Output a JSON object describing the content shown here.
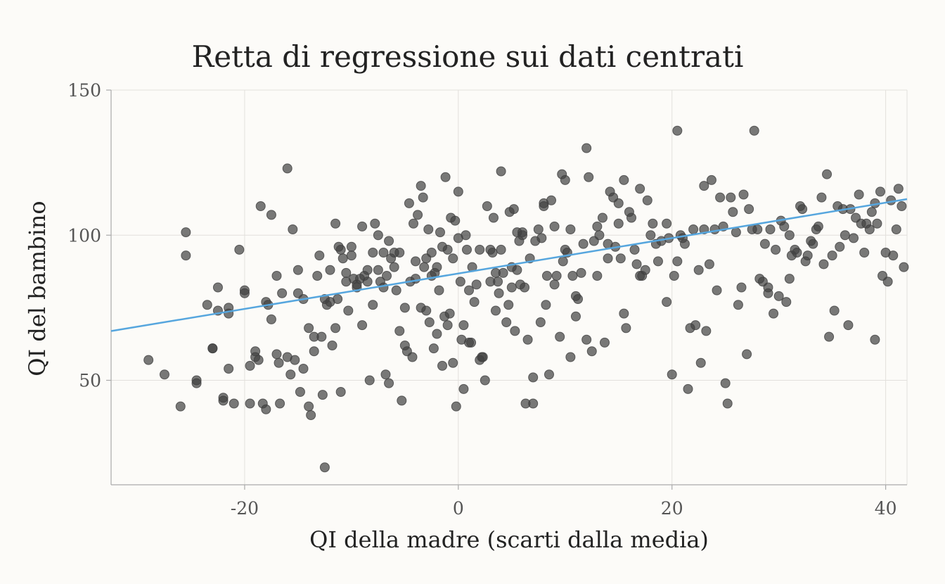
{
  "chart_data": {
    "type": "scatter",
    "title": "Retta di regressione sui dati centrati",
    "xlabel": "QI della madre (scarti dalla media)",
    "ylabel": "QI del bambino",
    "xlim": [
      -32.5,
      42
    ],
    "ylim": [
      14,
      150
    ],
    "xticks": [
      -20,
      0,
      20,
      40
    ],
    "yticks": [
      50,
      100,
      150
    ],
    "grid": true,
    "colors": {
      "points": "#404040",
      "line": "#56a6de",
      "background": "#fcfbf8"
    },
    "regression_line": {
      "intercept": 86.8,
      "slope": 0.61
    },
    "points": [
      [
        -29,
        57
      ],
      [
        -27.5,
        52
      ],
      [
        -26,
        41
      ],
      [
        -25.5,
        101
      ],
      [
        -25.5,
        93
      ],
      [
        -24.5,
        50
      ],
      [
        -24.5,
        49
      ],
      [
        -23.5,
        76
      ],
      [
        -23,
        61
      ],
      [
        -23,
        61
      ],
      [
        -22.5,
        82
      ],
      [
        -22.5,
        74
      ],
      [
        -22,
        44
      ],
      [
        -22,
        43
      ],
      [
        -21.5,
        75
      ],
      [
        -21.5,
        73
      ],
      [
        -21.5,
        54
      ],
      [
        -21,
        42
      ],
      [
        -20.5,
        95
      ],
      [
        -20,
        81
      ],
      [
        -20,
        80
      ],
      [
        -19.5,
        55
      ],
      [
        -19.5,
        42
      ],
      [
        -19,
        60
      ],
      [
        -19,
        58
      ],
      [
        -18.7,
        57
      ],
      [
        -18.5,
        110
      ],
      [
        -18.3,
        42
      ],
      [
        -18,
        40
      ],
      [
        -18,
        77
      ],
      [
        -17.8,
        76
      ],
      [
        -17.5,
        71
      ],
      [
        -17.5,
        107
      ],
      [
        -17,
        59
      ],
      [
        -17,
        86
      ],
      [
        -16.8,
        56
      ],
      [
        -16.7,
        42
      ],
      [
        -16.5,
        80
      ],
      [
        -16,
        123
      ],
      [
        -16,
        58
      ],
      [
        -15.7,
        52
      ],
      [
        -15.5,
        102
      ],
      [
        -15.3,
        57
      ],
      [
        -15,
        80
      ],
      [
        -15,
        88
      ],
      [
        -14.8,
        46
      ],
      [
        -14.5,
        54
      ],
      [
        -14.5,
        78
      ],
      [
        -14,
        41
      ],
      [
        -14,
        68
      ],
      [
        -13.8,
        38
      ],
      [
        -13.5,
        65
      ],
      [
        -13.5,
        60
      ],
      [
        -13.2,
        86
      ],
      [
        -13,
        93
      ],
      [
        -12.8,
        65
      ],
      [
        -12.7,
        45
      ],
      [
        -12.5,
        20
      ],
      [
        -12.5,
        78
      ],
      [
        -12.3,
        76
      ],
      [
        -12,
        88
      ],
      [
        -12,
        77
      ],
      [
        -11.8,
        62
      ],
      [
        -11.5,
        68
      ],
      [
        -11.5,
        104
      ],
      [
        -11.3,
        78
      ],
      [
        -11.2,
        96
      ],
      [
        -11,
        46
      ],
      [
        -11,
        95
      ],
      [
        -10.8,
        92
      ],
      [
        -10.5,
        84
      ],
      [
        -10.5,
        87
      ],
      [
        -10.3,
        74
      ],
      [
        -10,
        93
      ],
      [
        -10,
        96
      ],
      [
        -9.8,
        85
      ],
      [
        -9.5,
        82
      ],
      [
        -9.5,
        83
      ],
      [
        -9.2,
        85
      ],
      [
        -9,
        69
      ],
      [
        -9,
        103
      ],
      [
        -8.8,
        86
      ],
      [
        -8.5,
        84
      ],
      [
        -8.5,
        88
      ],
      [
        -8.3,
        50
      ],
      [
        -8,
        76
      ],
      [
        -8,
        94
      ],
      [
        -7.8,
        104
      ],
      [
        -7.5,
        100
      ],
      [
        -7.5,
        88
      ],
      [
        -7.3,
        84
      ],
      [
        -7,
        82
      ],
      [
        -7,
        94
      ],
      [
        -6.8,
        52
      ],
      [
        -6.7,
        86
      ],
      [
        -6.5,
        98
      ],
      [
        -6.5,
        49
      ],
      [
        -6.3,
        92
      ],
      [
        -6,
        94
      ],
      [
        -6,
        89
      ],
      [
        -5.8,
        81
      ],
      [
        -5.5,
        94
      ],
      [
        -5.5,
        67
      ],
      [
        -5.3,
        43
      ],
      [
        -5,
        75
      ],
      [
        -5,
        62
      ],
      [
        -4.8,
        60
      ],
      [
        -4.6,
        111
      ],
      [
        -4.5,
        84
      ],
      [
        -4.3,
        58
      ],
      [
        -4.2,
        104
      ],
      [
        -4,
        85
      ],
      [
        -4,
        91
      ],
      [
        -3.8,
        107
      ],
      [
        -3.5,
        75
      ],
      [
        -3.5,
        117
      ],
      [
        -3.3,
        113
      ],
      [
        -3.2,
        89
      ],
      [
        -3,
        92
      ],
      [
        -3,
        74
      ],
      [
        -2.8,
        102
      ],
      [
        -2.7,
        70
      ],
      [
        -2.5,
        86
      ],
      [
        -2.5,
        94
      ],
      [
        -2.3,
        61
      ],
      [
        -2.2,
        87
      ],
      [
        -2,
        66
      ],
      [
        -2,
        89
      ],
      [
        -1.8,
        81
      ],
      [
        -1.7,
        101
      ],
      [
        -1.5,
        96
      ],
      [
        -1.5,
        55
      ],
      [
        -1.3,
        72
      ],
      [
        -1.2,
        120
      ],
      [
        -1,
        69
      ],
      [
        -1,
        95
      ],
      [
        -0.8,
        73
      ],
      [
        -0.7,
        106
      ],
      [
        -0.5,
        56
      ],
      [
        -0.5,
        92
      ],
      [
        -0.3,
        105
      ],
      [
        -0.2,
        41
      ],
      [
        0,
        99
      ],
      [
        0,
        115
      ],
      [
        0.2,
        84
      ],
      [
        0.3,
        64
      ],
      [
        0.5,
        47
      ],
      [
        0.5,
        69
      ],
      [
        0.7,
        100
      ],
      [
        0.8,
        95
      ],
      [
        1,
        81
      ],
      [
        1,
        63
      ],
      [
        1.2,
        63
      ],
      [
        1.3,
        89
      ],
      [
        1.5,
        77
      ],
      [
        1.7,
        83
      ],
      [
        2,
        95
      ],
      [
        2,
        57
      ],
      [
        2.2,
        58
      ],
      [
        2.3,
        58
      ],
      [
        2.5,
        50
      ],
      [
        2.7,
        110
      ],
      [
        3,
        84
      ],
      [
        3,
        95
      ],
      [
        3.2,
        94
      ],
      [
        3.3,
        106
      ],
      [
        3.5,
        74
      ],
      [
        3.5,
        87
      ],
      [
        3.7,
        84
      ],
      [
        3.8,
        80
      ],
      [
        4,
        122
      ],
      [
        4,
        95
      ],
      [
        4.2,
        87
      ],
      [
        4.5,
        70
      ],
      [
        4.7,
        76
      ],
      [
        4.8,
        108
      ],
      [
        5,
        82
      ],
      [
        5,
        89
      ],
      [
        5.2,
        109
      ],
      [
        5.3,
        67
      ],
      [
        5.5,
        101
      ],
      [
        5.5,
        88
      ],
      [
        5.7,
        98
      ],
      [
        5.8,
        83
      ],
      [
        6,
        101
      ],
      [
        6,
        100
      ],
      [
        6.2,
        82
      ],
      [
        6.3,
        42
      ],
      [
        6.5,
        64
      ],
      [
        6.7,
        92
      ],
      [
        7,
        42
      ],
      [
        7,
        51
      ],
      [
        7.2,
        98
      ],
      [
        7.5,
        102
      ],
      [
        7.7,
        70
      ],
      [
        7.8,
        99
      ],
      [
        8,
        110
      ],
      [
        8,
        111
      ],
      [
        8.2,
        76
      ],
      [
        8.3,
        86
      ],
      [
        8.5,
        52
      ],
      [
        8.7,
        112
      ],
      [
        9,
        83
      ],
      [
        9,
        103
      ],
      [
        9.2,
        86
      ],
      [
        9.5,
        65
      ],
      [
        9.7,
        121
      ],
      [
        9.8,
        91
      ],
      [
        10,
        119
      ],
      [
        10,
        95
      ],
      [
        10.2,
        94
      ],
      [
        10.5,
        58
      ],
      [
        10.5,
        102
      ],
      [
        10.7,
        86
      ],
      [
        11,
        72
      ],
      [
        11,
        79
      ],
      [
        11.2,
        78
      ],
      [
        11.5,
        87
      ],
      [
        11.7,
        97
      ],
      [
        12,
        130
      ],
      [
        12,
        64
      ],
      [
        12.2,
        120
      ],
      [
        12.5,
        60
      ],
      [
        12.7,
        98
      ],
      [
        13,
        103
      ],
      [
        13,
        86
      ],
      [
        13.2,
        100
      ],
      [
        13.5,
        106
      ],
      [
        13.7,
        63
      ],
      [
        14,
        92
      ],
      [
        14,
        97
      ],
      [
        14.2,
        115
      ],
      [
        14.5,
        113
      ],
      [
        14.7,
        96
      ],
      [
        15,
        111
      ],
      [
        15,
        104
      ],
      [
        15.2,
        92
      ],
      [
        15.5,
        119
      ],
      [
        15.5,
        73
      ],
      [
        15.7,
        68
      ],
      [
        16,
        108
      ],
      [
        16.2,
        106
      ],
      [
        16.5,
        95
      ],
      [
        16.7,
        90
      ],
      [
        17,
        116
      ],
      [
        17,
        86
      ],
      [
        17.2,
        86
      ],
      [
        17.5,
        88
      ],
      [
        17.7,
        112
      ],
      [
        18,
        100
      ],
      [
        18.2,
        104
      ],
      [
        18.5,
        97
      ],
      [
        18.7,
        91
      ],
      [
        19,
        98
      ],
      [
        19.5,
        104
      ],
      [
        19.5,
        77
      ],
      [
        19.7,
        99
      ],
      [
        20,
        52
      ],
      [
        20.2,
        86
      ],
      [
        20.5,
        136
      ],
      [
        20.5,
        91
      ],
      [
        20.8,
        100
      ],
      [
        21,
        99
      ],
      [
        21.2,
        97
      ],
      [
        21.5,
        47
      ],
      [
        21.7,
        68
      ],
      [
        22,
        102
      ],
      [
        22.2,
        69
      ],
      [
        22.5,
        88
      ],
      [
        22.7,
        56
      ],
      [
        23,
        117
      ],
      [
        23,
        102
      ],
      [
        23.2,
        67
      ],
      [
        23.5,
        90
      ],
      [
        23.7,
        119
      ],
      [
        24,
        102
      ],
      [
        24.2,
        81
      ],
      [
        24.5,
        113
      ],
      [
        24.8,
        103
      ],
      [
        25,
        49
      ],
      [
        25.2,
        42
      ],
      [
        25.5,
        113
      ],
      [
        25.7,
        108
      ],
      [
        26,
        101
      ],
      [
        26.2,
        76
      ],
      [
        26.5,
        82
      ],
      [
        26.7,
        114
      ],
      [
        27,
        59
      ],
      [
        27.2,
        109
      ],
      [
        27.5,
        102
      ],
      [
        27.7,
        136
      ],
      [
        28,
        102
      ],
      [
        28.2,
        85
      ],
      [
        28.5,
        84
      ],
      [
        28.7,
        97
      ],
      [
        29,
        80
      ],
      [
        29,
        82
      ],
      [
        29.2,
        102
      ],
      [
        29.5,
        73
      ],
      [
        29.7,
        95
      ],
      [
        30,
        79
      ],
      [
        30.2,
        105
      ],
      [
        30.5,
        103
      ],
      [
        30.7,
        77
      ],
      [
        31,
        100
      ],
      [
        31,
        85
      ],
      [
        31.2,
        93
      ],
      [
        31.5,
        95
      ],
      [
        31.7,
        94
      ],
      [
        32,
        110
      ],
      [
        32.2,
        109
      ],
      [
        32.5,
        91
      ],
      [
        32.7,
        93
      ],
      [
        33,
        98
      ],
      [
        33.2,
        97
      ],
      [
        33.5,
        102
      ],
      [
        33.7,
        103
      ],
      [
        34,
        113
      ],
      [
        34.2,
        90
      ],
      [
        34.5,
        121
      ],
      [
        34.7,
        65
      ],
      [
        35,
        93
      ],
      [
        35.2,
        74
      ],
      [
        35.5,
        110
      ],
      [
        35.7,
        96
      ],
      [
        36,
        109
      ],
      [
        36.2,
        100
      ],
      [
        36.5,
        69
      ],
      [
        36.7,
        109
      ],
      [
        37,
        99
      ],
      [
        37.2,
        106
      ],
      [
        37.5,
        114
      ],
      [
        37.7,
        104
      ],
      [
        38,
        94
      ],
      [
        38.2,
        104
      ],
      [
        38.5,
        102
      ],
      [
        38.7,
        108
      ],
      [
        39,
        64
      ],
      [
        39,
        111
      ],
      [
        39.2,
        104
      ],
      [
        39.5,
        115
      ],
      [
        39.7,
        86
      ],
      [
        40,
        94
      ],
      [
        40.2,
        84
      ],
      [
        40.5,
        112
      ],
      [
        40.7,
        93
      ],
      [
        41,
        102
      ],
      [
        41.2,
        116
      ],
      [
        41.5,
        110
      ],
      [
        41.7,
        89
      ]
    ]
  }
}
